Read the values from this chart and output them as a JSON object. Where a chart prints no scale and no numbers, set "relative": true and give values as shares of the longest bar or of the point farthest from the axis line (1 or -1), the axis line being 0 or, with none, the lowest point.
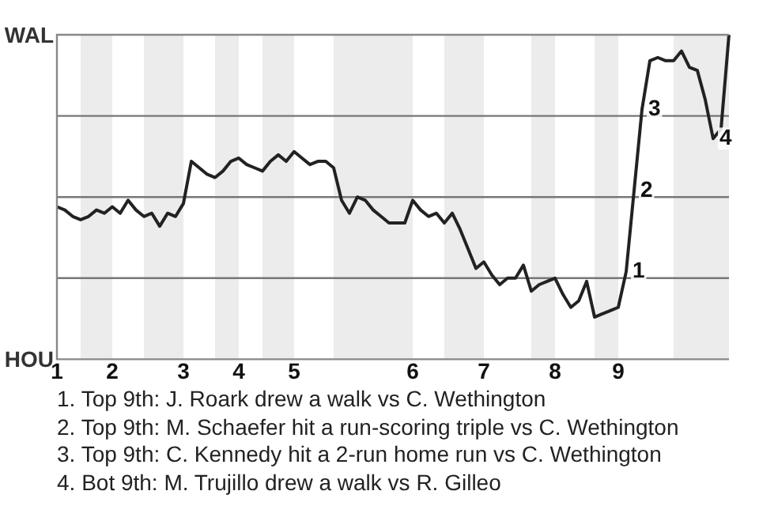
{
  "chart_data": {
    "type": "line",
    "relative": true,
    "categories": [
      "1",
      null,
      null,
      null,
      null,
      null,
      null,
      "2",
      null,
      null,
      null,
      null,
      null,
      null,
      null,
      null,
      "3",
      null,
      null,
      null,
      null,
      null,
      null,
      "4",
      null,
      null,
      null,
      null,
      null,
      null,
      "5",
      null,
      null,
      null,
      null,
      null,
      null,
      null,
      null,
      null,
      null,
      null,
      null,
      null,
      null,
      "6",
      null,
      null,
      null,
      null,
      null,
      null,
      null,
      null,
      "7",
      null,
      null,
      null,
      null,
      null,
      null,
      null,
      null,
      "8",
      null,
      null,
      null,
      null,
      null,
      null,
      null,
      "9",
      null,
      null,
      null,
      null,
      null,
      null,
      null,
      null,
      null,
      null,
      null,
      null,
      null,
      null
    ],
    "series": [
      {
        "color": "#222222",
        "values": [
          0.47,
          0.46,
          0.44,
          0.43,
          0.44,
          0.46,
          0.45,
          0.47,
          0.45,
          0.49,
          0.46,
          0.44,
          0.45,
          0.41,
          0.45,
          0.44,
          0.48,
          0.61,
          0.59,
          0.57,
          0.56,
          0.58,
          0.61,
          0.62,
          0.6,
          0.59,
          0.58,
          0.61,
          0.63,
          0.61,
          0.64,
          0.62,
          0.6,
          0.61,
          0.61,
          0.59,
          0.49,
          0.45,
          0.5,
          0.49,
          0.46,
          0.44,
          0.42,
          0.42,
          0.42,
          0.49,
          0.46,
          0.44,
          0.45,
          0.42,
          0.45,
          0.4,
          0.34,
          0.28,
          0.3,
          0.26,
          0.23,
          0.25,
          0.25,
          0.29,
          0.21,
          0.23,
          0.24,
          0.25,
          0.2,
          0.16,
          0.18,
          0.24,
          0.13,
          0.14,
          0.15,
          0.16,
          0.27,
          0.52,
          0.77,
          0.92,
          0.93,
          0.92,
          0.92,
          0.95,
          0.9,
          0.89,
          0.8,
          0.68,
          0.71,
          1
        ]
      }
    ],
    "ref_lines": [
      {
        "axis": "y",
        "value": 0.25,
        "color": "#777777"
      },
      {
        "axis": "y",
        "value": 0.5,
        "color": "#777777"
      },
      {
        "axis": "y",
        "value": 0.75,
        "color": "#777777"
      }
    ],
    "legend": false,
    "marker": "none",
    "line_style": "solid",
    "annotations": [
      "WAL",
      "HOU",
      {
        "text": "1",
        "y": 0.27
      },
      {
        "text": "2",
        "y": 0.52
      },
      {
        "text": "3",
        "y": 0.77
      },
      {
        "text": "4",
        "y": 0.68
      },
      "1. Top 9th: J. Roark drew a walk vs C. Wethington",
      "2. Top 9th: M. Schaefer hit a run-scoring triple vs C. Wethington",
      "3. Top 9th: C. Kennedy hit a 2-run home run vs C. Wethington",
      "4. Bot 9th: M. Trujillo drew a walk vs R. Gilleo"
    ]
  }
}
